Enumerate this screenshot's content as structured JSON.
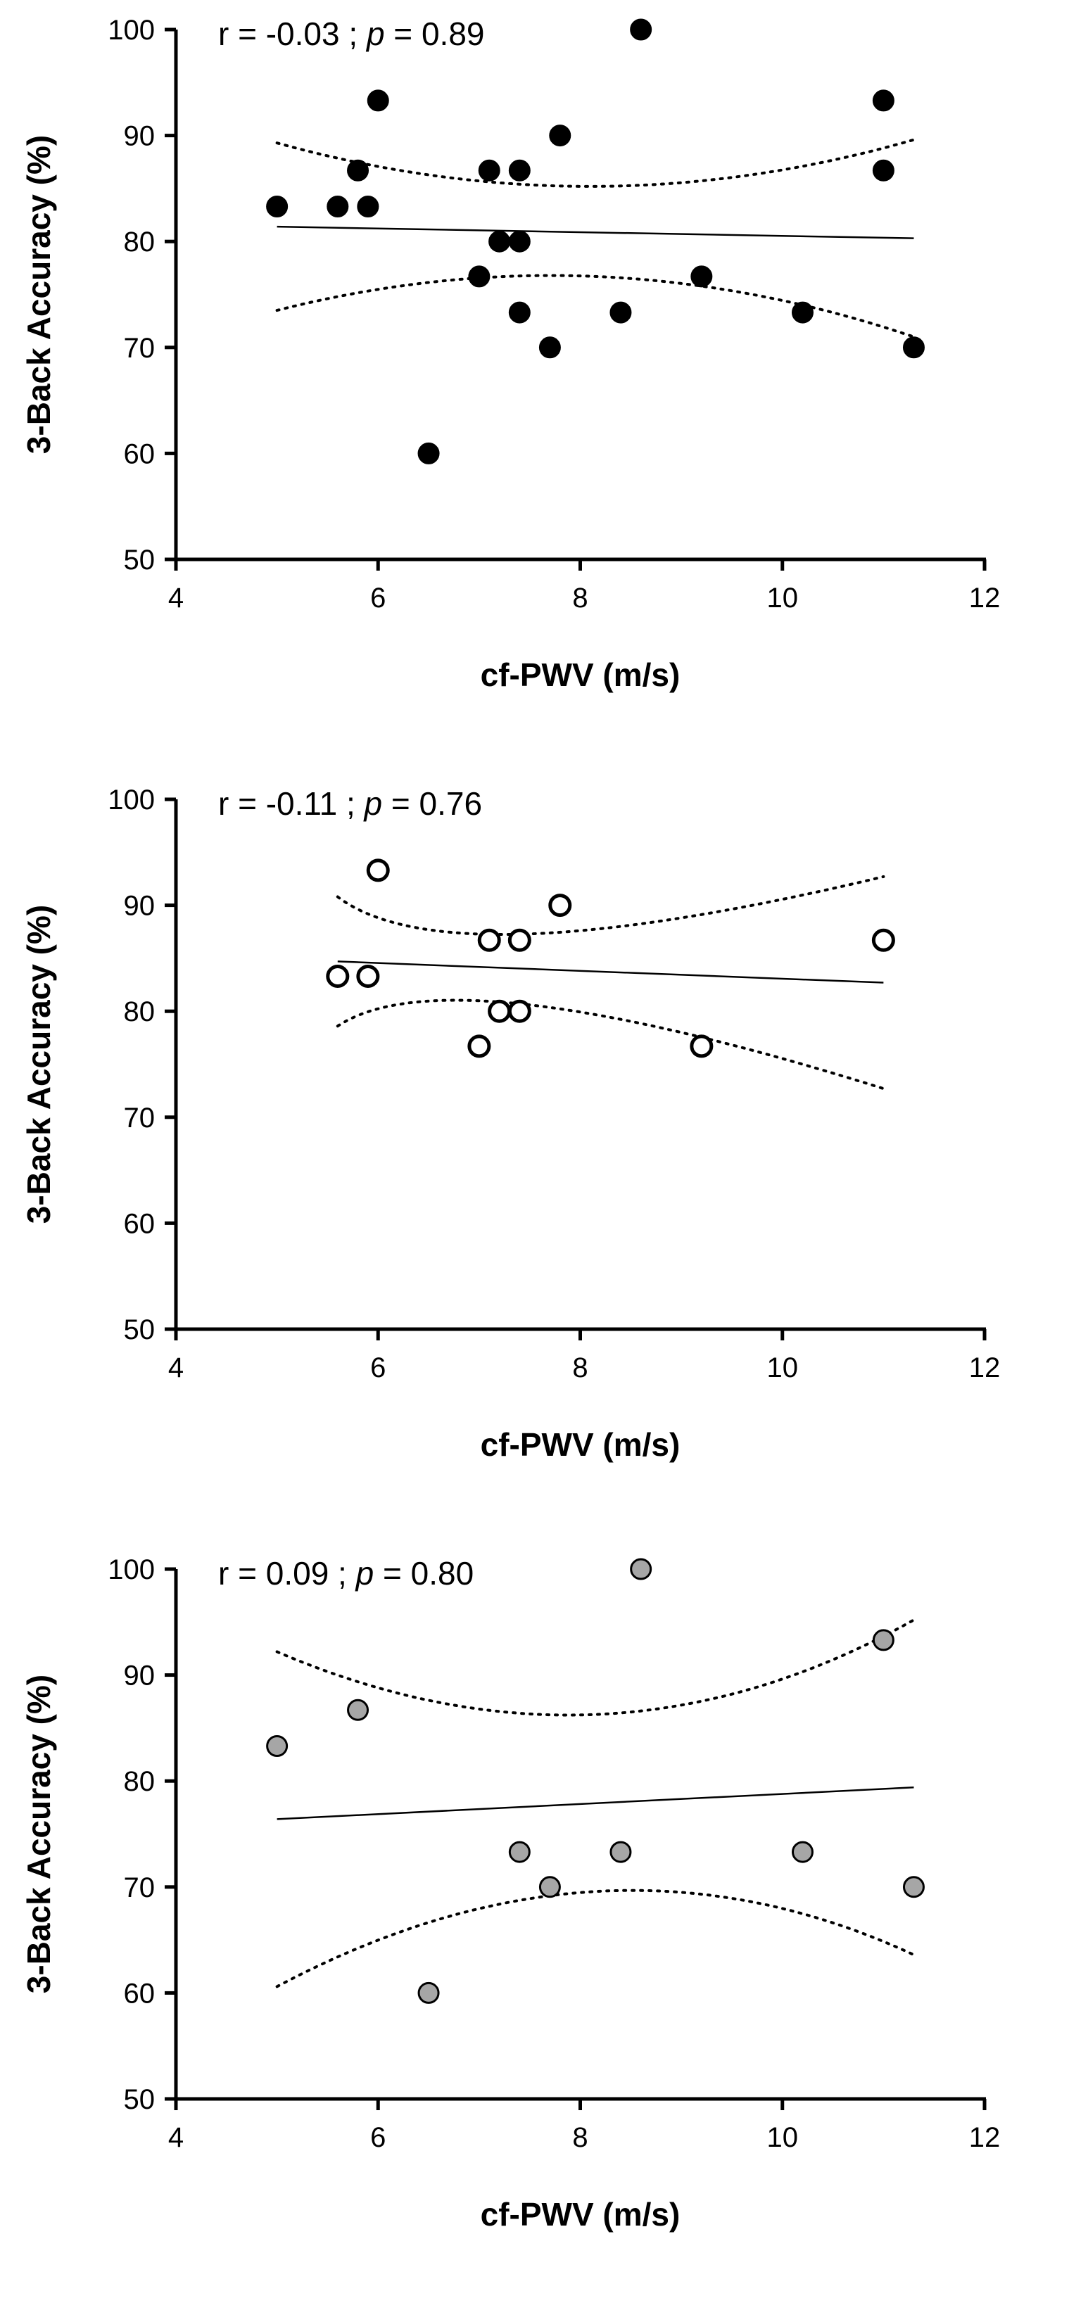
{
  "chart_data": [
    {
      "type": "scatter",
      "title": "",
      "xlabel": "cf-PWV (m/s)",
      "ylabel": "3-Back Accuracy (%)",
      "xlim": [
        4,
        12
      ],
      "ylim": [
        50,
        100
      ],
      "xticks": [
        "4",
        "6",
        "8",
        "10",
        "12"
      ],
      "yticks": [
        "50",
        "60",
        "70",
        "80",
        "90",
        "100"
      ],
      "annotation": {
        "r": "r = -0.03 ; ",
        "p_symbol": "p",
        "p_value": " = 0.89"
      },
      "marker": {
        "fill": "#000000",
        "stroke": "#000000"
      },
      "points": [
        {
          "x": 5.0,
          "y": 83.3
        },
        {
          "x": 5.6,
          "y": 83.3
        },
        {
          "x": 5.8,
          "y": 86.7
        },
        {
          "x": 5.9,
          "y": 83.3
        },
        {
          "x": 6.0,
          "y": 93.3
        },
        {
          "x": 6.5,
          "y": 60.0
        },
        {
          "x": 7.0,
          "y": 76.7
        },
        {
          "x": 7.1,
          "y": 86.7
        },
        {
          "x": 7.2,
          "y": 80.0
        },
        {
          "x": 7.4,
          "y": 86.7
        },
        {
          "x": 7.4,
          "y": 80.0
        },
        {
          "x": 7.4,
          "y": 73.3
        },
        {
          "x": 7.7,
          "y": 70.0
        },
        {
          "x": 7.8,
          "y": 90.0
        },
        {
          "x": 8.4,
          "y": 73.3
        },
        {
          "x": 8.6,
          "y": 100.0
        },
        {
          "x": 9.2,
          "y": 76.7
        },
        {
          "x": 10.2,
          "y": 73.3
        },
        {
          "x": 11.0,
          "y": 93.3
        },
        {
          "x": 11.0,
          "y": 86.7
        },
        {
          "x": 11.3,
          "y": 70.0
        }
      ],
      "fit_line": [
        {
          "x": 5.0,
          "y": 81.4
        },
        {
          "x": 11.3,
          "y": 80.3
        }
      ],
      "ci_upper": [
        {
          "x": 5.0,
          "y": 89.3
        },
        {
          "x": 8.15,
          "y": 85.2
        },
        {
          "x": 11.3,
          "y": 89.6
        }
      ],
      "ci_lower": [
        {
          "x": 5.0,
          "y": 73.5
        },
        {
          "x": 8.15,
          "y": 76.7
        },
        {
          "x": 11.3,
          "y": 71.0
        }
      ]
    },
    {
      "type": "scatter",
      "title": "",
      "xlabel": "cf-PWV (m/s)",
      "ylabel": "3-Back Accuracy (%)",
      "xlim": [
        4,
        12
      ],
      "ylim": [
        50,
        100
      ],
      "xticks": [
        "4",
        "6",
        "8",
        "10",
        "12"
      ],
      "yticks": [
        "50",
        "60",
        "70",
        "80",
        "90",
        "100"
      ],
      "annotation": {
        "r": "r = -0.11 ; ",
        "p_symbol": "p",
        "p_value": " = 0.76"
      },
      "marker": {
        "fill": "#ffffff",
        "stroke": "#000000"
      },
      "points": [
        {
          "x": 5.6,
          "y": 83.3
        },
        {
          "x": 5.9,
          "y": 83.3
        },
        {
          "x": 6.0,
          "y": 93.3
        },
        {
          "x": 7.0,
          "y": 76.7
        },
        {
          "x": 7.1,
          "y": 86.7
        },
        {
          "x": 7.2,
          "y": 80.0
        },
        {
          "x": 7.4,
          "y": 86.7
        },
        {
          "x": 7.4,
          "y": 80.0
        },
        {
          "x": 7.8,
          "y": 90.0
        },
        {
          "x": 9.2,
          "y": 76.7
        },
        {
          "x": 11.0,
          "y": 86.7
        }
      ],
      "fit_line": [
        {
          "x": 5.6,
          "y": 84.7
        },
        {
          "x": 11.0,
          "y": 82.7
        }
      ],
      "ci_upper": [
        {
          "x": 5.6,
          "y": 90.8
        },
        {
          "x": 7.5,
          "y": 87.3
        },
        {
          "x": 11.0,
          "y": 92.7
        }
      ],
      "ci_lower": [
        {
          "x": 5.6,
          "y": 78.6
        },
        {
          "x": 7.5,
          "y": 80.6
        },
        {
          "x": 11.0,
          "y": 72.7
        }
      ]
    },
    {
      "type": "scatter",
      "title": "",
      "xlabel": "cf-PWV (m/s)",
      "ylabel": "3-Back Accuracy (%)",
      "xlim": [
        4,
        12
      ],
      "ylim": [
        50,
        100
      ],
      "xticks": [
        "4",
        "6",
        "8",
        "10",
        "12"
      ],
      "yticks": [
        "50",
        "60",
        "70",
        "80",
        "90",
        "100"
      ],
      "annotation": {
        "r": "r = 0.09 ; ",
        "p_symbol": "p",
        "p_value": " = 0.80"
      },
      "marker": {
        "fill": "#a6a6a6",
        "stroke": "#000000"
      },
      "points": [
        {
          "x": 5.0,
          "y": 83.3
        },
        {
          "x": 5.8,
          "y": 86.7
        },
        {
          "x": 6.5,
          "y": 60.0
        },
        {
          "x": 7.4,
          "y": 73.3
        },
        {
          "x": 7.7,
          "y": 70.0
        },
        {
          "x": 8.4,
          "y": 73.3
        },
        {
          "x": 8.6,
          "y": 100.0
        },
        {
          "x": 10.2,
          "y": 73.3
        },
        {
          "x": 11.0,
          "y": 93.3
        },
        {
          "x": 11.3,
          "y": 70.0
        }
      ],
      "fit_line": [
        {
          "x": 5.0,
          "y": 76.4
        },
        {
          "x": 11.3,
          "y": 79.4
        }
      ],
      "ci_upper": [
        {
          "x": 5.0,
          "y": 92.2
        },
        {
          "x": 8.2,
          "y": 86.3
        },
        {
          "x": 11.3,
          "y": 95.2
        }
      ],
      "ci_lower": [
        {
          "x": 5.0,
          "y": 60.6
        },
        {
          "x": 8.2,
          "y": 69.6
        },
        {
          "x": 11.3,
          "y": 63.6
        }
      ]
    }
  ]
}
